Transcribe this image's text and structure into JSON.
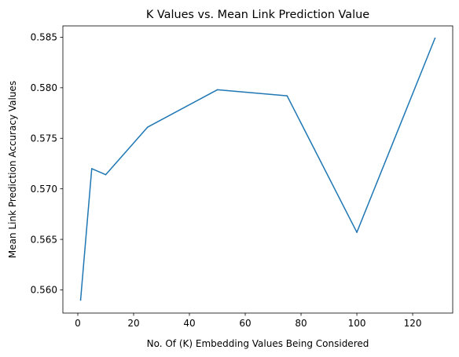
{
  "chart_data": {
    "type": "line",
    "title": "K Values vs. Mean Link Prediction Value",
    "xlabel": "No. Of (K) Embedding Values Being Considered",
    "ylabel": "Mean Link Prediction Accuracy Values",
    "xlim": [
      -5.35,
      134.35
    ],
    "ylim": [
      0.55771,
      0.58612
    ],
    "xticks": [
      0,
      20,
      40,
      60,
      80,
      100,
      120
    ],
    "xtick_labels": [
      "0",
      "20",
      "40",
      "60",
      "80",
      "100",
      "120"
    ],
    "yticks": [
      0.56,
      0.565,
      0.57,
      0.575,
      0.58,
      0.585
    ],
    "ytick_labels": [
      "0.560",
      "0.565",
      "0.570",
      "0.575",
      "0.580",
      "0.585"
    ],
    "grid": false,
    "series": [
      {
        "color": "#1f77b4",
        "x": [
          1,
          5,
          10,
          25,
          50,
          75,
          100,
          128
        ],
        "y": [
          0.559,
          0.572,
          0.5714,
          0.5761,
          0.5798,
          0.5792,
          0.5657,
          0.5849
        ]
      }
    ]
  }
}
